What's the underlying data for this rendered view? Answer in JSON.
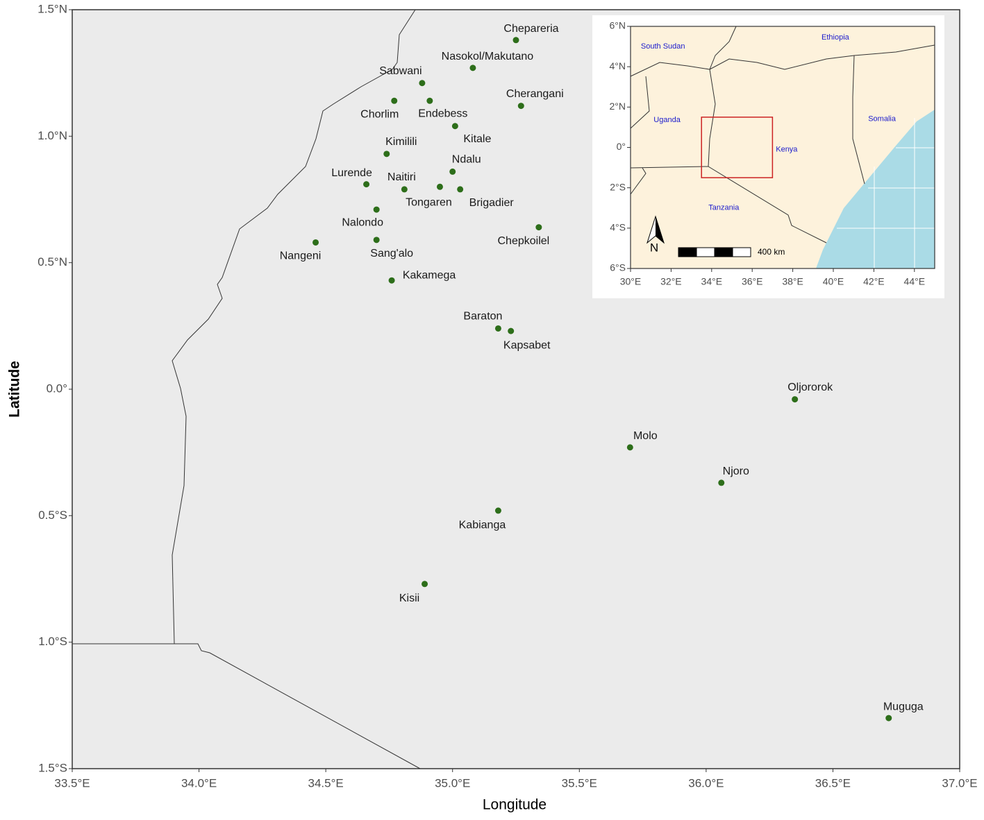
{
  "chart_data": [
    {
      "type": "scatter",
      "x_label": "Longitude",
      "y_label": "Latitude",
      "color": "#2d6e1a",
      "labels": [
        "Chepareria",
        "Nasokol/Makutano",
        "Sabwani",
        "Chorlim",
        "Endebess",
        "Cherangani",
        "Kitale",
        "Kimilili",
        "Ndalu",
        "Lurende",
        "Naitiri",
        "Tongaren",
        "Brigadier",
        "Nalondo",
        "Chepkoilel",
        "Nangeni",
        "Sang'alo",
        "Kakamega",
        "Baraton",
        "Kapsabet",
        "Oljororok",
        "Molo",
        "Njoro",
        "Kabianga",
        "Kisii",
        "Muguga"
      ],
      "x": [
        35.25,
        35.08,
        34.88,
        34.77,
        34.91,
        35.27,
        35.01,
        34.74,
        35.0,
        34.66,
        34.81,
        34.95,
        35.03,
        34.7,
        35.34,
        34.46,
        34.7,
        34.76,
        35.18,
        35.23,
        36.35,
        35.7,
        36.06,
        35.18,
        34.89,
        36.72
      ],
      "y": [
        1.38,
        1.27,
        1.21,
        1.14,
        1.14,
        1.12,
        1.04,
        0.93,
        0.86,
        0.81,
        0.79,
        0.8,
        0.79,
        0.71,
        0.64,
        0.58,
        0.59,
        0.43,
        0.24,
        0.23,
        -0.04,
        -0.23,
        -0.37,
        -0.48,
        -0.77,
        -1.3
      ],
      "xlim": [
        33.5,
        37.0
      ],
      "ylim": [
        -1.5,
        1.5
      ],
      "xticks": [
        {
          "value": 33.5,
          "label": "33.5°E"
        },
        {
          "value": 34.0,
          "label": "34.0°E"
        },
        {
          "value": 34.5,
          "label": "34.5°E"
        },
        {
          "value": 35.0,
          "label": "35.0°E"
        },
        {
          "value": 35.5,
          "label": "35.5°E"
        },
        {
          "value": 36.0,
          "label": "36.0°E"
        },
        {
          "value": 36.5,
          "label": "36.5°E"
        },
        {
          "value": 37.0,
          "label": "37.0°E"
        }
      ],
      "yticks": [
        {
          "value": -1.5,
          "label": "1.5°S"
        },
        {
          "value": -1.0,
          "label": "1.0°S"
        },
        {
          "value": -0.5,
          "label": "0.5°S"
        },
        {
          "value": 0,
          "label": "0.0°"
        },
        {
          "value": 0.5,
          "label": "0.5°N"
        },
        {
          "value": 1.0,
          "label": "1.0°N"
        },
        {
          "value": 1.5,
          "label": "1.5°N"
        }
      ]
    },
    {
      "type": "map",
      "xlim": [
        30,
        45
      ],
      "ylim": [
        -6,
        6
      ],
      "xticks": [
        {
          "value": 30,
          "label": "30°E"
        },
        {
          "value": 32,
          "label": "32°E"
        },
        {
          "value": 34,
          "label": "34°E"
        },
        {
          "value": 36,
          "label": "36°E"
        },
        {
          "value": 38,
          "label": "38°E"
        },
        {
          "value": 40,
          "label": "40°E"
        },
        {
          "value": 42,
          "label": "42°E"
        },
        {
          "value": 44,
          "label": "44°E"
        }
      ],
      "yticks": [
        {
          "value": -6,
          "label": "6°S"
        },
        {
          "value": -4,
          "label": "4°S"
        },
        {
          "value": -2,
          "label": "2°S"
        },
        {
          "value": 0,
          "label": "0°"
        },
        {
          "value": 2,
          "label": "2°N"
        },
        {
          "value": 4,
          "label": "4°N"
        },
        {
          "value": 6,
          "label": "6°N"
        }
      ],
      "countries": [
        "South Sudan",
        "Ethiopia",
        "Uganda",
        "Somalia",
        "Kenya",
        "Tanzania"
      ],
      "highlight": {
        "xlim": [
          33.5,
          37.0
        ],
        "ylim": [
          -1.5,
          1.5
        ],
        "color": "#cc2222"
      },
      "north_label": "N",
      "scale_label": "400 km"
    }
  ]
}
